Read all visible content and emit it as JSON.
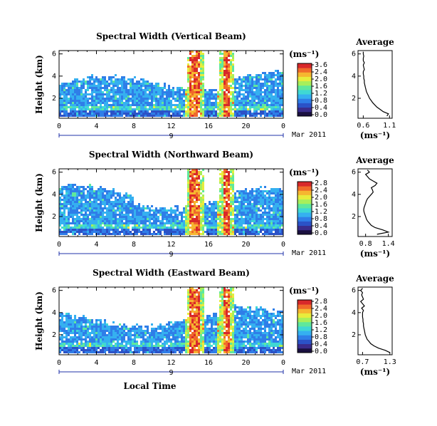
{
  "colors": {
    "colormap": [
      "#1a1040",
      "#3a2c8c",
      "#2b52c7",
      "#2f7ee8",
      "#35b0f0",
      "#3fd8d4",
      "#5fe89c",
      "#a8ef5a",
      "#e8ec3c",
      "#f6b630",
      "#f06a2a",
      "#d8282a"
    ],
    "ink": "#000000",
    "date_axis": "#2233aa"
  },
  "chart_data": [
    {
      "type": "heatmap",
      "title": "Spectral Width (Vertical Beam)",
      "ylabel": "Height (km)",
      "xlabel": "",
      "x_ticks": [
        "0",
        "4",
        "8",
        "12",
        "16",
        "20",
        "0"
      ],
      "y_ticks": [
        "2",
        "4",
        "6"
      ],
      "xlim": [
        0,
        24
      ],
      "ylim": [
        0.2,
        6.3
      ],
      "date_label": "9",
      "date_label_right": "Mar 2011",
      "colorbar": {
        "unit": "(ms⁻¹)",
        "ticks": [
          "3.6",
          "2.4",
          "2.0",
          "1.6",
          "1.2",
          "0.8",
          "0.4",
          "0.0"
        ]
      },
      "average": {
        "title": "Average",
        "x_ticks": [
          "0.6",
          "1.1"
        ],
        "xlim": [
          0.5,
          1.15
        ],
        "y_ticks": [
          "2",
          "4",
          "6"
        ],
        "xlabel": "(ms⁻¹)",
        "profile_x": [
          1.05,
          1.08,
          0.98,
          0.92,
          0.86,
          0.82,
          0.78,
          0.75,
          0.72,
          0.7,
          0.68,
          0.66,
          0.65,
          0.64,
          0.63,
          0.62,
          0.62,
          0.61,
          0.61,
          0.6,
          0.6,
          0.62,
          0.61,
          0.6,
          0.62,
          0.6,
          0.6,
          0.61,
          0.6,
          0.6
        ],
        "profile_y": [
          0.4,
          0.6,
          0.8,
          1.0,
          1.2,
          1.4,
          1.6,
          1.8,
          2.0,
          2.2,
          2.4,
          2.6,
          2.8,
          3.0,
          3.2,
          3.4,
          3.6,
          3.8,
          4.0,
          4.2,
          4.4,
          4.6,
          4.8,
          5.0,
          5.2,
          5.4,
          5.6,
          5.8,
          6.0,
          6.2
        ]
      }
    },
    {
      "type": "heatmap",
      "title": "Spectral Width (Northward Beam)",
      "ylabel": "Height (km)",
      "xlabel": "",
      "x_ticks": [
        "0",
        "4",
        "8",
        "12",
        "16",
        "20",
        "0"
      ],
      "y_ticks": [
        "2",
        "4",
        "6"
      ],
      "xlim": [
        0,
        24
      ],
      "ylim": [
        0.2,
        6.3
      ],
      "date_label": "9",
      "date_label_right": "Mar 2011",
      "colorbar": {
        "unit": "(ms⁻¹)",
        "ticks": [
          "2.8",
          "2.4",
          "2.0",
          "1.6",
          "1.2",
          "0.8",
          "0.4",
          "0.0"
        ]
      },
      "average": {
        "title": "Average",
        "x_ticks": [
          "0.8",
          "1.4"
        ],
        "xlim": [
          0.6,
          1.5
        ],
        "y_ticks": [
          "2",
          "4",
          "6"
        ],
        "xlabel": "(ms⁻¹)",
        "profile_x": [
          1.1,
          1.4,
          1.25,
          1.05,
          0.95,
          0.9,
          0.85,
          0.82,
          0.8,
          0.78,
          0.76,
          0.75,
          0.76,
          0.78,
          0.8,
          0.82,
          0.85,
          0.9,
          0.95,
          1.0,
          0.98,
          0.95,
          1.05,
          1.1,
          1.0,
          0.9,
          0.85,
          0.8,
          0.9,
          0.85
        ],
        "profile_y": [
          0.4,
          0.6,
          0.8,
          1.0,
          1.2,
          1.4,
          1.6,
          1.8,
          2.0,
          2.2,
          2.4,
          2.6,
          2.8,
          3.0,
          3.2,
          3.4,
          3.6,
          3.8,
          4.0,
          4.2,
          4.4,
          4.6,
          4.8,
          5.0,
          5.2,
          5.4,
          5.6,
          5.8,
          6.0,
          6.2
        ]
      }
    },
    {
      "type": "heatmap",
      "title": "Spectral Width (Eastward Beam)",
      "ylabel": "Height (km)",
      "xlabel": "Local Time",
      "x_ticks": [
        "0",
        "4",
        "8",
        "12",
        "16",
        "20",
        "0"
      ],
      "y_ticks": [
        "2",
        "4",
        "6"
      ],
      "xlim": [
        0,
        24
      ],
      "ylim": [
        0.2,
        6.3
      ],
      "date_label": "9",
      "date_label_right": "Mar 2011",
      "colorbar": {
        "unit": "(ms⁻¹)",
        "ticks": [
          "2.8",
          "2.4",
          "2.0",
          "1.6",
          "1.2",
          "0.8",
          "0.4",
          "0.0"
        ]
      },
      "average": {
        "title": "Average",
        "x_ticks": [
          "0.7",
          "1.3"
        ],
        "xlim": [
          0.6,
          1.35
        ],
        "y_ticks": [
          "2",
          "4",
          "6"
        ],
        "xlabel": "(ms⁻¹)",
        "profile_x": [
          1.3,
          1.2,
          1.05,
          0.95,
          0.88,
          0.84,
          0.8,
          0.78,
          0.76,
          0.75,
          0.74,
          0.73,
          0.72,
          0.72,
          0.71,
          0.71,
          0.7,
          0.7,
          0.7,
          0.72,
          0.68,
          0.74,
          0.7,
          0.66,
          0.72,
          0.7,
          0.68,
          0.7,
          0.66,
          0.7
        ],
        "profile_y": [
          0.4,
          0.6,
          0.8,
          1.0,
          1.2,
          1.4,
          1.6,
          1.8,
          2.0,
          2.2,
          2.4,
          2.6,
          2.8,
          3.0,
          3.2,
          3.4,
          3.6,
          3.8,
          4.0,
          4.2,
          4.4,
          4.6,
          4.8,
          5.0,
          5.2,
          5.4,
          5.6,
          5.8,
          6.0,
          6.2
        ]
      }
    }
  ]
}
